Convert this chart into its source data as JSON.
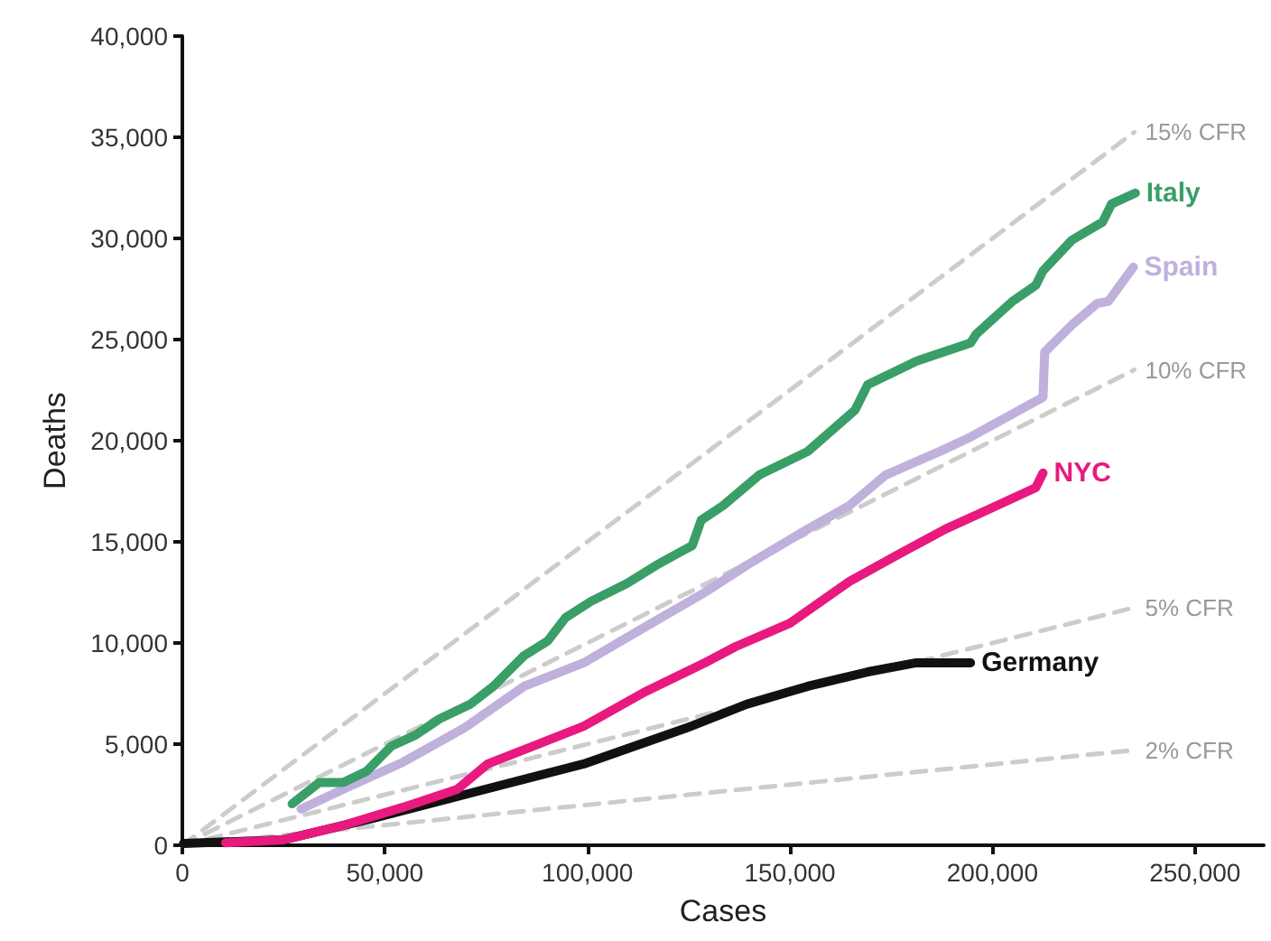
{
  "chart_data": {
    "type": "line",
    "xlabel": "Cases",
    "ylabel": "Deaths",
    "xlim": [
      0,
      267000
    ],
    "ylim": [
      0,
      40000
    ],
    "xticks": [
      0,
      {
        "value": 50000,
        "label": "50,000"
      },
      {
        "value": 100000,
        "label": "100,000"
      },
      {
        "value": 150000,
        "label": "150,000"
      },
      {
        "value": 200000,
        "label": "200,000"
      },
      {
        "value": 250000,
        "label": "250,000"
      }
    ],
    "yticks": [
      0,
      {
        "value": 5000,
        "label": "5,000"
      },
      {
        "value": 10000,
        "label": "10,000"
      },
      {
        "value": 15000,
        "label": "15,000"
      },
      {
        "value": 20000,
        "label": "20,000"
      },
      {
        "value": 25000,
        "label": "25,000"
      },
      {
        "value": 30000,
        "label": "30,000"
      },
      {
        "value": 35000,
        "label": "35,000"
      },
      {
        "value": 40000,
        "label": "40,000"
      }
    ],
    "grid": false,
    "legend": false,
    "marker": "none",
    "series": [
      {
        "name": "15% CFR",
        "color": "#cccccc",
        "line_style": "dashed",
        "x": [
          0,
          235000
        ],
        "values": [
          0,
          35250
        ]
      },
      {
        "name": "10% CFR",
        "color": "#cccccc",
        "line_style": "dashed",
        "x": [
          0,
          235000
        ],
        "values": [
          0,
          23500
        ]
      },
      {
        "name": "5% CFR",
        "color": "#cccccc",
        "line_style": "dashed",
        "x": [
          0,
          235000
        ],
        "values": [
          0,
          11750
        ]
      },
      {
        "name": "2% CFR",
        "color": "#cccccc",
        "line_style": "dashed",
        "x": [
          0,
          235000
        ],
        "values": [
          0,
          4700
        ]
      },
      {
        "name": "Germany",
        "color": "#111111",
        "line_style": "solid",
        "x": [
          300,
          25000,
          47300,
          69600,
          99100,
          124500,
          139300,
          154400,
          169200,
          181200,
          194600
        ],
        "values": [
          90,
          270,
          1340,
          2500,
          4020,
          5800,
          6970,
          7860,
          8570,
          9020,
          9020
        ]
      },
      {
        "name": "NYC",
        "color": "#e8197f",
        "line_style": "solid",
        "x": [
          10700,
          25000,
          39700,
          54500,
          67900,
          75400,
          84400,
          99100,
          114300,
          129000,
          136600,
          150000,
          164700,
          176800,
          188400,
          199100,
          210700,
          212500
        ],
        "values": [
          120,
          270,
          980,
          1880,
          2770,
          4020,
          4730,
          5890,
          7590,
          9020,
          9820,
          10980,
          13040,
          14380,
          15630,
          16610,
          17680,
          18400
        ]
      },
      {
        "name": "Spain",
        "color": "#c0b0dc",
        "line_style": "solid",
        "x": [
          29300,
          39700,
          54500,
          69600,
          84400,
          99100,
          114300,
          129000,
          139300,
          154400,
          164700,
          173600,
          187000,
          194600,
          212500,
          212900,
          219600,
          225900,
          228600,
          234800
        ],
        "values": [
          1790,
          2770,
          4110,
          5800,
          7860,
          9020,
          10800,
          12500,
          13840,
          15630,
          16790,
          18300,
          19470,
          20180,
          22150,
          24380,
          25720,
          26790,
          26880,
          28580
        ]
      },
      {
        "name": "Italy",
        "color": "#3a9e68",
        "line_style": "solid",
        "x": [
          27100,
          33800,
          39700,
          45500,
          51600,
          57600,
          63500,
          71000,
          76800,
          84400,
          90200,
          94600,
          100900,
          109800,
          117000,
          125900,
          128100,
          133500,
          142400,
          154400,
          166100,
          169200,
          181200,
          194600,
          196000,
          204900,
          210700,
          212500,
          219600,
          227200,
          229400,
          235300
        ],
        "values": [
          2050,
          3100,
          3100,
          3660,
          4900,
          5450,
          6250,
          6960,
          7860,
          9380,
          10100,
          11250,
          12060,
          12950,
          13840,
          14820,
          16070,
          16790,
          18300,
          19470,
          21520,
          22770,
          23930,
          24830,
          25270,
          26880,
          27680,
          28400,
          29910,
          30810,
          31700,
          32240
        ]
      }
    ]
  }
}
